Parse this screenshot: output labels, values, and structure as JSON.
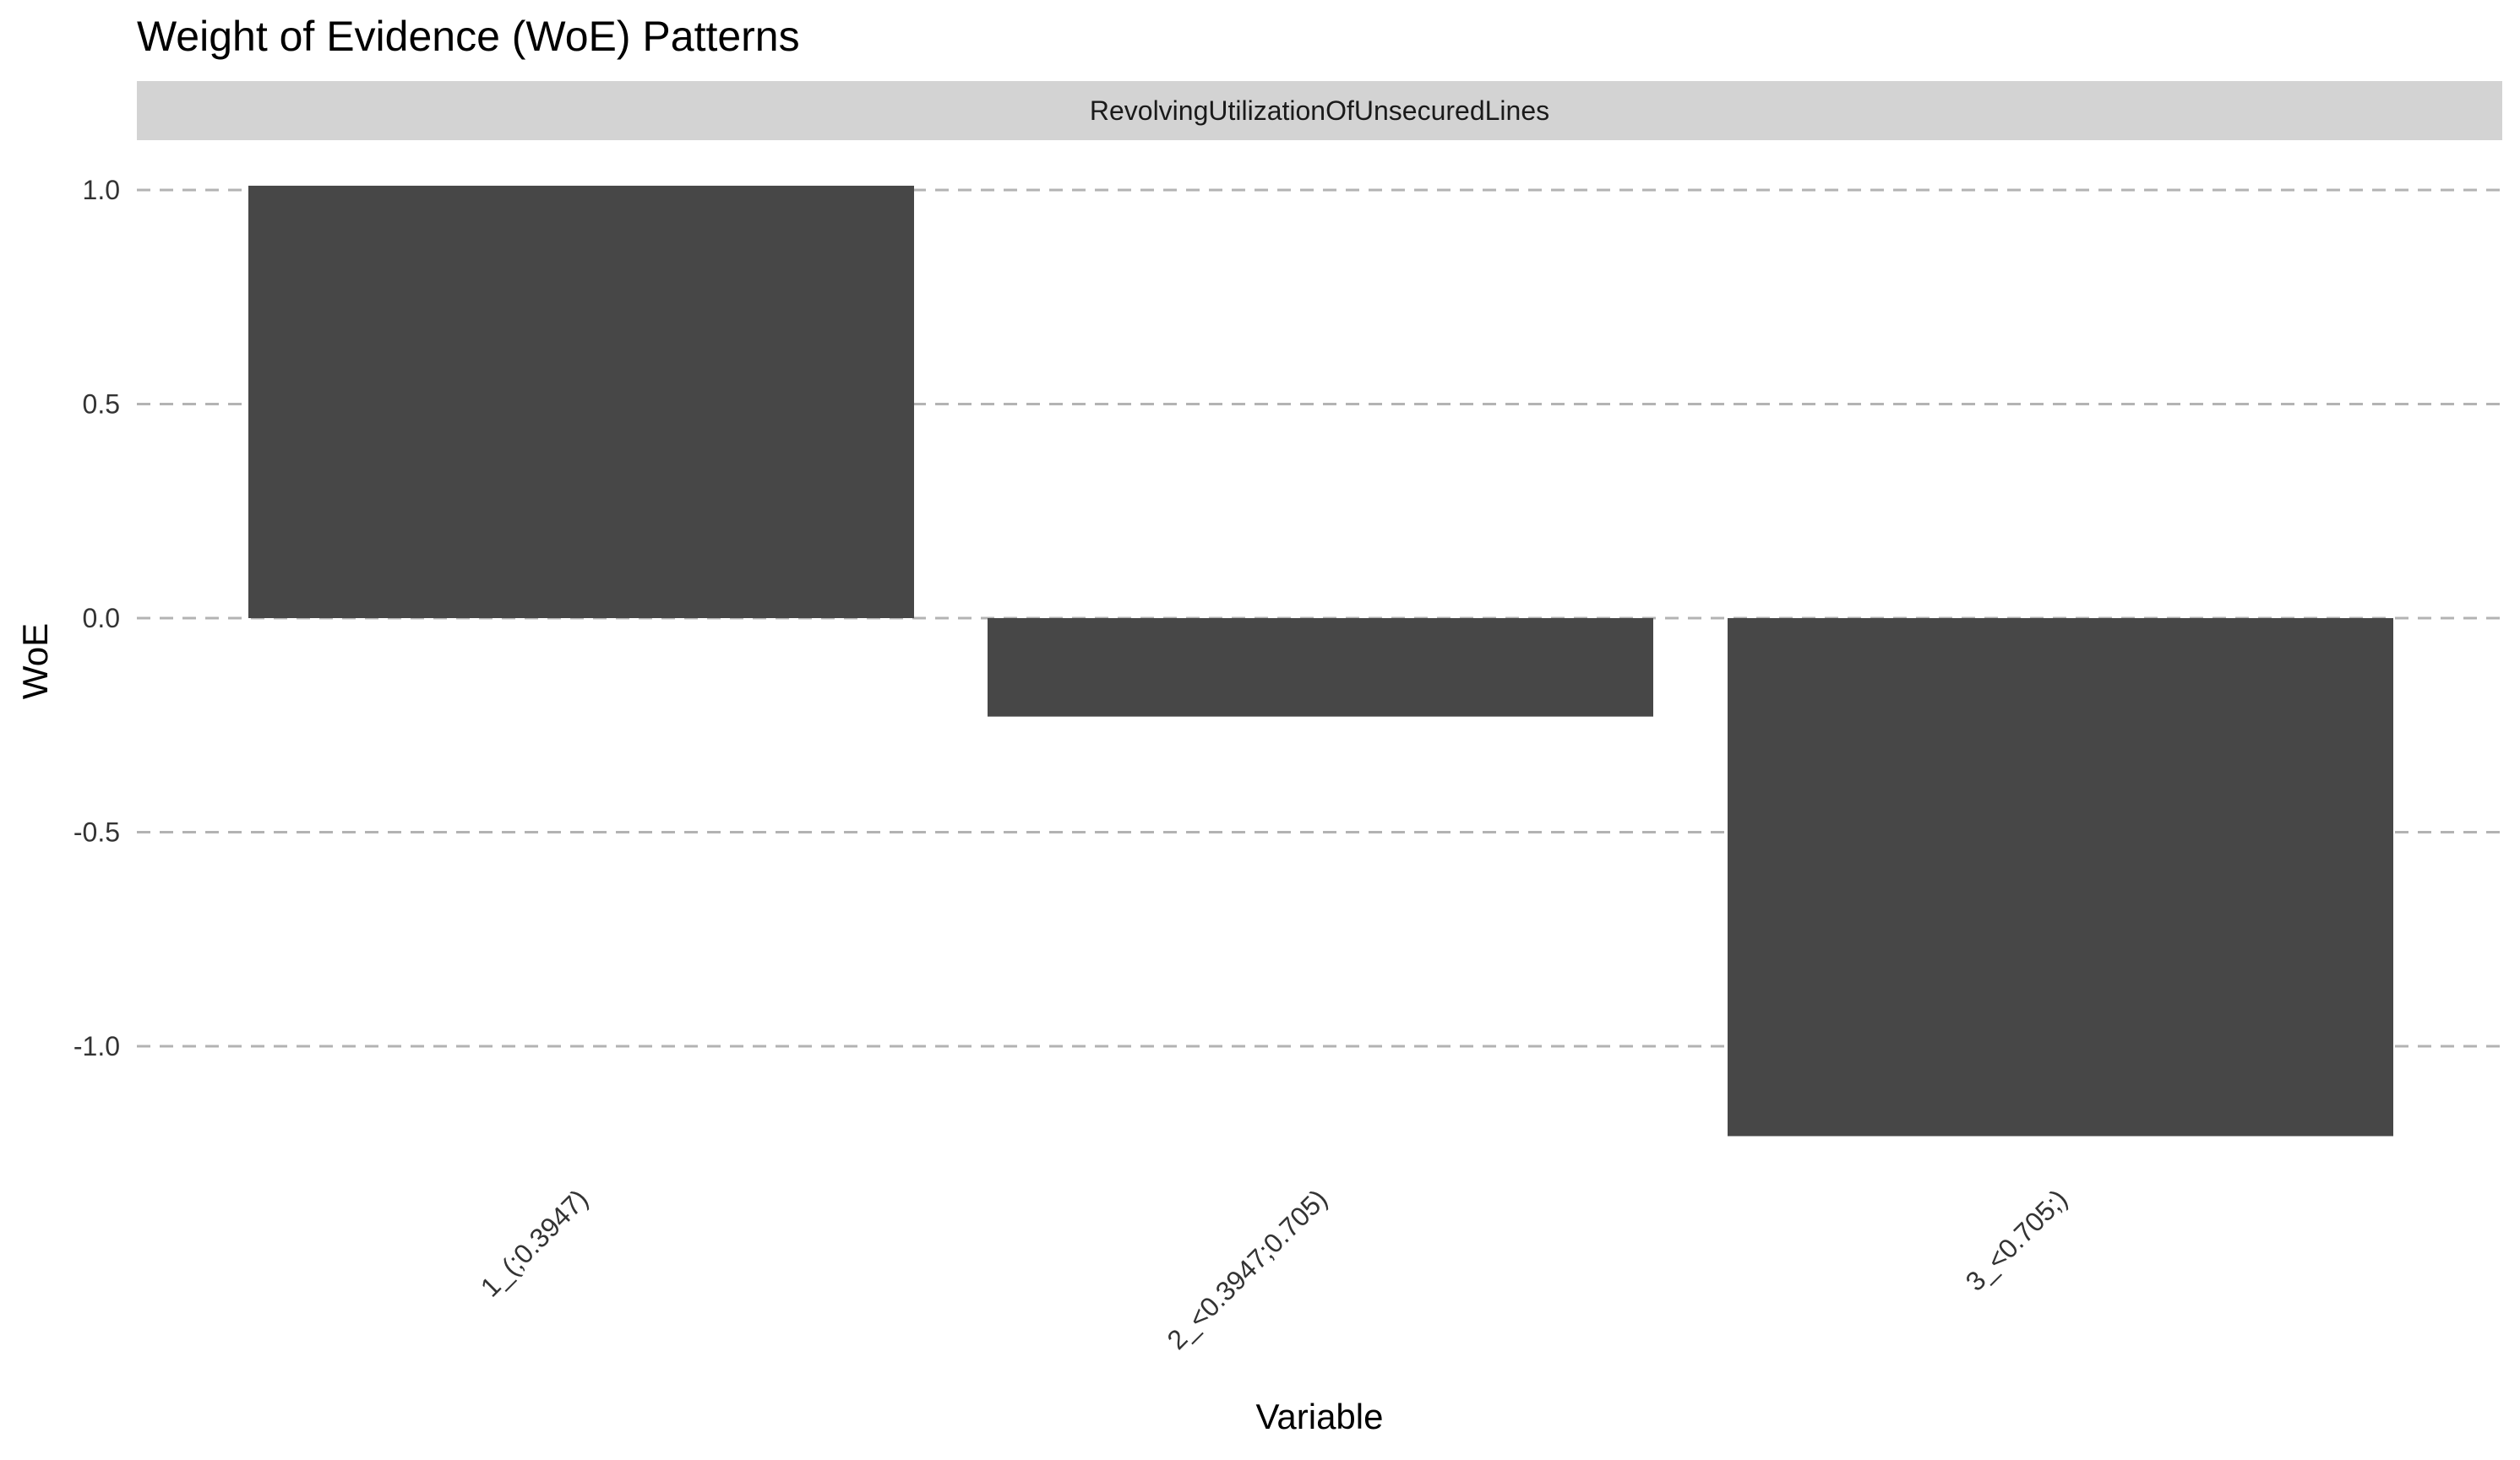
{
  "chart_data": {
    "type": "bar",
    "title": "Weight of Evidence (WoE) Patterns",
    "facet": "RevolvingUtilizationOfUnsecuredLines",
    "xlabel": "Variable",
    "ylabel": "WoE",
    "categories": [
      "1_(;0.3947)",
      "2_<0.3947;0.705)",
      "3_<0.705;)"
    ],
    "values": [
      1.01,
      -0.23,
      -1.21
    ],
    "ylim": [
      -1.3,
      1.1
    ],
    "yticks": [
      1.0,
      0.5,
      0.0,
      -0.5,
      -1.0
    ],
    "ytick_labels": [
      "1.0",
      "0.5",
      "0.0",
      "-0.5",
      "-1.0"
    ],
    "grid": {
      "horizontal": true,
      "vertical": false,
      "style": "dashed",
      "color": "#b3b3b3"
    },
    "legend": "none",
    "colors": {
      "bar": "#474747",
      "facet_strip": "#d3d3d3",
      "background": "#ffffff"
    }
  }
}
